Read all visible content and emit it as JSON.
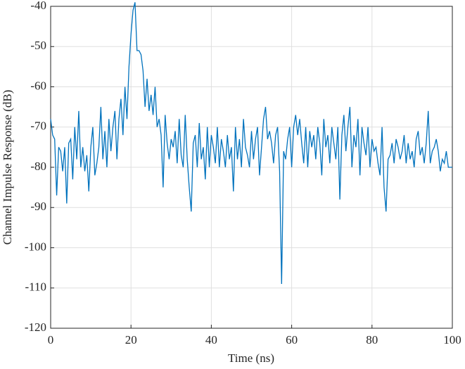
{
  "chart_data": {
    "type": "line",
    "xlabel": "Time (ns)",
    "ylabel": "Channel Impulse Response (dB)",
    "x": [
      0,
      0.5,
      1,
      1.5,
      2,
      2.5,
      3,
      3.5,
      4,
      4.5,
      5,
      5.5,
      6,
      6.5,
      7,
      7.5,
      8,
      8.5,
      9,
      9.5,
      10,
      10.5,
      11,
      11.5,
      12,
      12.5,
      13,
      13.5,
      14,
      14.5,
      15,
      15.5,
      16,
      16.5,
      17,
      17.5,
      18,
      18.5,
      19,
      19.5,
      20,
      20.5,
      21,
      21.5,
      22,
      22.5,
      23,
      23.5,
      24,
      24.5,
      25,
      25.5,
      26,
      26.5,
      27,
      27.5,
      28,
      28.5,
      29,
      29.5,
      30,
      30.5,
      31,
      31.5,
      32,
      32.5,
      33,
      33.5,
      34,
      34.5,
      35,
      35.5,
      36,
      36.5,
      37,
      37.5,
      38,
      38.5,
      39,
      39.5,
      40,
      40.5,
      41,
      41.5,
      42,
      42.5,
      43,
      43.5,
      44,
      44.5,
      45,
      45.5,
      46,
      46.5,
      47,
      47.5,
      48,
      48.5,
      49,
      49.5,
      50,
      50.5,
      51,
      51.5,
      52,
      52.5,
      53,
      53.5,
      54,
      54.5,
      55,
      55.5,
      56,
      56.5,
      57,
      57.5,
      58,
      58.5,
      59,
      59.5,
      60,
      60.5,
      61,
      61.5,
      62,
      62.5,
      63,
      63.5,
      64,
      64.5,
      65,
      65.5,
      66,
      66.5,
      67,
      67.5,
      68,
      68.5,
      69,
      69.5,
      70,
      70.5,
      71,
      71.5,
      72,
      72.5,
      73,
      73.5,
      74,
      74.5,
      75,
      75.5,
      76,
      76.5,
      77,
      77.5,
      78,
      78.5,
      79,
      79.5,
      80,
      80.5,
      81,
      81.5,
      82,
      82.5,
      83,
      83.5,
      84,
      84.5,
      85,
      85.5,
      86,
      86.5,
      87,
      87.5,
      88,
      88.5,
      89,
      89.5,
      90,
      90.5,
      91,
      91.5,
      92,
      92.5,
      93,
      93.5,
      94,
      94.5,
      95,
      95.5,
      96,
      96.5,
      97,
      97.5,
      98,
      98.5,
      99,
      99.5,
      100
    ],
    "series": [
      {
        "color": "#0072bd",
        "values": [
          -68,
          -72,
          -73,
          -87,
          -75,
          -76,
          -81,
          -75,
          -89,
          -74,
          -73,
          -83,
          -70,
          -78,
          -66,
          -80,
          -75,
          -81,
          -77,
          -86,
          -75,
          -70,
          -82,
          -79,
          -75,
          -65,
          -78,
          -71,
          -80,
          -68,
          -76,
          -70,
          -66,
          -78,
          -68,
          -63,
          -72,
          -60,
          -68,
          -55,
          -47,
          -41,
          -39,
          -51,
          -51,
          -52,
          -56,
          -65,
          -58,
          -66,
          -62,
          -67,
          -60,
          -70,
          -68,
          -72,
          -85,
          -67,
          -74,
          -78,
          -73,
          -75,
          -71,
          -79,
          -68,
          -77,
          -80,
          -67,
          -78,
          -85,
          -91,
          -74,
          -72,
          -80,
          -69,
          -78,
          -75,
          -83,
          -70,
          -80,
          -72,
          -75,
          -79,
          -70,
          -80,
          -73,
          -76,
          -80,
          -72,
          -78,
          -75,
          -86,
          -70,
          -78,
          -73,
          -80,
          -68,
          -75,
          -77,
          -80,
          -71,
          -78,
          -73,
          -70,
          -82,
          -75,
          -68,
          -65,
          -73,
          -71,
          -74,
          -79,
          -72,
          -70,
          -81,
          -109,
          -76,
          -78,
          -73,
          -70,
          -80,
          -70,
          -67,
          -72,
          -68,
          -74,
          -79,
          -70,
          -80,
          -71,
          -75,
          -72,
          -78,
          -70,
          -74,
          -82,
          -68,
          -75,
          -72,
          -79,
          -70,
          -74,
          -78,
          -70,
          -88,
          -72,
          -67,
          -76,
          -70,
          -65,
          -80,
          -72,
          -75,
          -68,
          -82,
          -70,
          -74,
          -77,
          -70,
          -80,
          -73,
          -76,
          -75,
          -79,
          -82,
          -70,
          -85,
          -91,
          -78,
          -77,
          -74,
          -79,
          -73,
          -75,
          -78,
          -76,
          -72,
          -79,
          -74,
          -78,
          -76,
          -80,
          -73,
          -71,
          -77,
          -75,
          -79,
          -74,
          -66,
          -79,
          -76,
          -75,
          -73,
          -76,
          -81,
          -78,
          -79,
          -76,
          -80,
          -80,
          -80
        ]
      }
    ],
    "xlim": [
      0,
      100
    ],
    "xticks": [
      0,
      20,
      40,
      60,
      80,
      100
    ],
    "ylim": [
      -120,
      -40
    ],
    "yticks": [
      -120,
      -110,
      -100,
      -90,
      -80,
      -70,
      -60,
      -50,
      -40
    ],
    "grid": true
  }
}
